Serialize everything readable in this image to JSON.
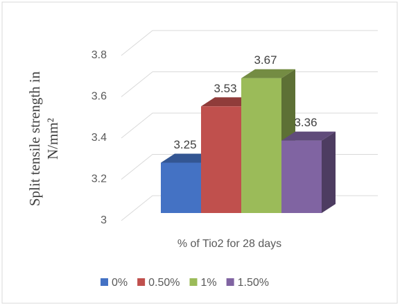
{
  "chart_data": {
    "type": "bar3d",
    "y_label": [
      "Split tensile strength in",
      "N/mm²"
    ],
    "categories": [
      "% of Tio2 for 28 days"
    ],
    "series": [
      {
        "name": "0%",
        "color": "#4472c4",
        "values": [
          3.25
        ]
      },
      {
        "name": "0.50%",
        "color": "#c0504d",
        "values": [
          3.53
        ]
      },
      {
        "name": "1%",
        "color": "#9bbb59",
        "values": [
          3.67
        ]
      },
      {
        "name": "1.50%",
        "color": "#8064a2",
        "values": [
          3.36
        ]
      }
    ],
    "ylim": [
      3,
      3.8
    ],
    "yticks": [
      3,
      3.2,
      3.4,
      3.6,
      3.8
    ],
    "grid": true,
    "legend": "bottom"
  }
}
